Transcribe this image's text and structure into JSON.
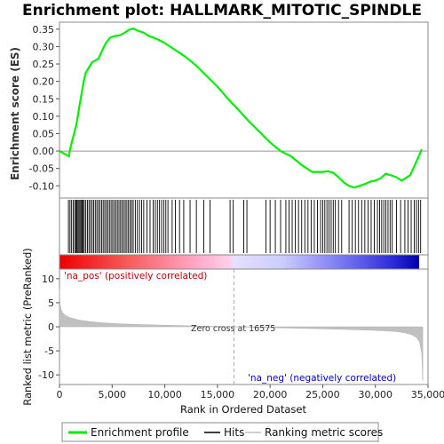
{
  "title": "Enrichment plot: HALLMARK_MITOTIC_SPINDLE",
  "chart_data": {
    "type": "line",
    "title": "Enrichment plot: HALLMARK_MITOTIC_SPINDLE",
    "es_panel": {
      "ylabel": "Enrichment score (ES)",
      "ylim": [
        -0.135,
        0.37
      ],
      "yticks": [
        "-0.10",
        "-0.05",
        "0.00",
        "0.05",
        "0.10",
        "0.15",
        "0.20",
        "0.25",
        "0.30",
        "0.35"
      ],
      "ytick_values": [
        -0.1,
        -0.05,
        0.0,
        0.05,
        0.1,
        0.15,
        0.2,
        0.25,
        0.3,
        0.35
      ],
      "series": [
        {
          "name": "Enrichment profile",
          "color": "#00ee00",
          "x": [
            0,
            900,
            1000,
            1300,
            1600,
            1900,
            2100,
            2300,
            2500,
            2800,
            3100,
            3400,
            3700,
            4000,
            4400,
            4800,
            5200,
            5700,
            6200,
            6600,
            7000,
            7500,
            8000,
            8500,
            9000,
            9500,
            10000,
            10500,
            11000,
            11500,
            12000,
            13000,
            14000,
            15000,
            16000,
            17000,
            18000,
            19000,
            20000,
            21000,
            22000,
            23000,
            24000,
            25000,
            25500,
            26000,
            26500,
            27000,
            27500,
            28000,
            28500,
            29000,
            29500,
            30000,
            30500,
            31000,
            31500,
            32000,
            32500,
            33000,
            33300,
            33600,
            33900,
            34200,
            34400
          ],
          "y": [
            0.0,
            -0.015,
            0.005,
            0.04,
            0.075,
            0.13,
            0.165,
            0.2,
            0.225,
            0.24,
            0.255,
            0.26,
            0.265,
            0.285,
            0.31,
            0.325,
            0.33,
            0.332,
            0.34,
            0.348,
            0.352,
            0.345,
            0.34,
            0.33,
            0.325,
            0.318,
            0.31,
            0.3,
            0.29,
            0.28,
            0.27,
            0.245,
            0.215,
            0.185,
            0.15,
            0.118,
            0.085,
            0.055,
            0.025,
            0.0,
            -0.015,
            -0.04,
            -0.06,
            -0.06,
            -0.058,
            -0.062,
            -0.075,
            -0.09,
            -0.1,
            -0.105,
            -0.1,
            -0.095,
            -0.088,
            -0.085,
            -0.078,
            -0.065,
            -0.07,
            -0.075,
            -0.085,
            -0.075,
            -0.07,
            -0.05,
            -0.03,
            -0.01,
            0.005
          ]
        }
      ]
    },
    "hits": {
      "name": "Hits",
      "color": "#000000",
      "positions": [
        850,
        1000,
        1150,
        1300,
        1450,
        1550,
        1650,
        1750,
        1850,
        1950,
        2050,
        2150,
        2250,
        2350,
        2500,
        2650,
        2800,
        2950,
        3100,
        3250,
        3400,
        3550,
        3700,
        3850,
        4000,
        4150,
        4300,
        4450,
        4600,
        4750,
        4900,
        5050,
        5200,
        5350,
        5500,
        5650,
        5800,
        5950,
        6100,
        6250,
        6400,
        6550,
        6700,
        6850,
        7000,
        7200,
        7400,
        7600,
        7800,
        8000,
        8300,
        8600,
        8900,
        9100,
        9300,
        9500,
        9700,
        9900,
        10100,
        10300,
        10700,
        11000,
        11400,
        11800,
        12400,
        13000,
        13700,
        14300,
        16200,
        16500,
        17500,
        17800,
        19600,
        20000,
        20500,
        21000,
        21500,
        21800,
        22100,
        22400,
        22700,
        23000,
        23300,
        23600,
        23900,
        24200,
        24500,
        24800,
        25000,
        25200,
        25400,
        25600,
        25800,
        26000,
        26200,
        26500,
        26800,
        27500,
        27800,
        28100,
        28400,
        28700,
        29000,
        29300,
        29600,
        29900,
        30200,
        30400,
        30600,
        30800,
        31000,
        31200,
        31400,
        31600,
        32000,
        32400,
        32800,
        33100,
        33400,
        33700,
        33900,
        34100,
        34300
      ]
    },
    "metric_panel": {
      "name": "Ranking metric scores",
      "color": "#c0c0c0",
      "xlabel": "Rank in Ordered Dataset",
      "ylabel": "Ranked list metric (PreRanked)",
      "ylim": [
        -12,
        12
      ],
      "yticks": [
        "-10",
        "-5",
        "0",
        "5",
        "10"
      ],
      "ytick_values": [
        -10,
        -5,
        0,
        5,
        10
      ],
      "x": [
        0,
        50,
        150,
        300,
        600,
        1000,
        1500,
        2000,
        3000,
        4000,
        5000,
        6000,
        8000,
        10000,
        12000,
        14000,
        16000,
        16575,
        18000,
        20000,
        22000,
        24000,
        26000,
        28000,
        30000,
        31000,
        32000,
        32800,
        33400,
        33900,
        34200,
        34400,
        34500
      ],
      "y": [
        8.0,
        4.8,
        3.6,
        2.9,
        2.3,
        1.9,
        1.6,
        1.35,
        1.05,
        0.85,
        0.7,
        0.6,
        0.45,
        0.33,
        0.22,
        0.12,
        0.03,
        0.0,
        -0.08,
        -0.17,
        -0.27,
        -0.37,
        -0.48,
        -0.6,
        -0.75,
        -0.85,
        -1.0,
        -1.25,
        -1.6,
        -2.2,
        -3.2,
        -5.5,
        -11.2
      ]
    },
    "xaxis": {
      "xlim": [
        0,
        35000
      ],
      "xticks": [
        "0",
        "5,000",
        "10,000",
        "15,000",
        "20,000",
        "25,000",
        "30,000",
        "35,000"
      ],
      "xtick_values": [
        0,
        5000,
        10000,
        15000,
        20000,
        25000,
        30000,
        35000
      ]
    },
    "zero_cross": 16575,
    "n_genes": 34500,
    "annotations": {
      "pos": "'na_pos' (positively correlated)",
      "neg": "'na_neg' (negatively correlated)",
      "zero": "Zero cross at 16575"
    }
  },
  "legend": [
    {
      "label": "Enrichment profile",
      "color": "#00ee00"
    },
    {
      "label": "Hits",
      "color": "#000000"
    },
    {
      "label": "Ranking metric scores",
      "color": "#c0c0c0"
    }
  ]
}
